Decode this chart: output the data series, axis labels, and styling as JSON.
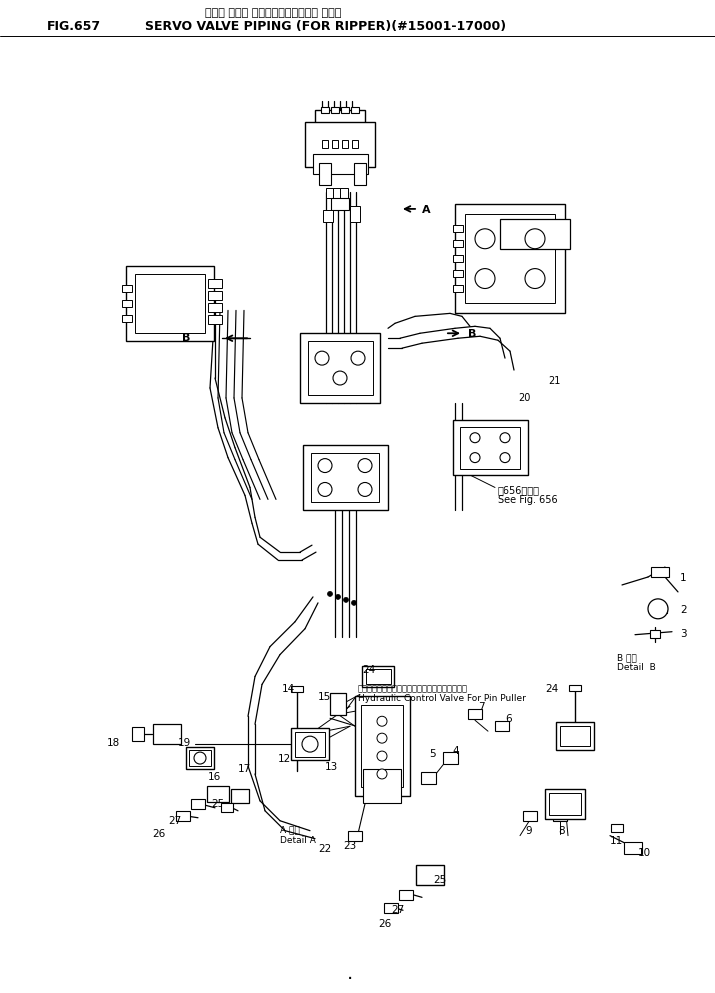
{
  "title_japanese": "サーボ バルブ パイピング（リッパ ヨウ）",
  "title_english": "SERVO VALVE PIPING (FOR RIPPER)(#15001-17000)",
  "fig_number": "FIG.657",
  "background_color": "#ffffff",
  "figsize": [
    7.15,
    9.93
  ],
  "dpi": 100,
  "text_color": "#000000",
  "line_color": "#000000",
  "fig_color": "#f0f0f0"
}
